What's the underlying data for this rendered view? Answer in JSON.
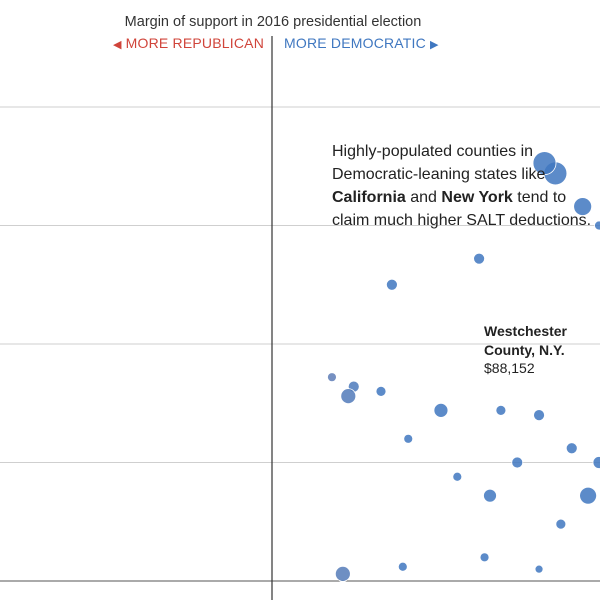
{
  "chart_data": {
    "type": "scatter",
    "title": "Margin of support in 2016 presidential election",
    "direction_left": "MORE REPUBLICAN",
    "direction_right": "MORE DEMOCRATIC",
    "annotation": {
      "line1": "Highly-populated counties in",
      "line2": "Democratic-leaning states like",
      "bold1": "California",
      "and": " and ",
      "bold2": "New York",
      "line3_tail": " tend to",
      "line4": "claim much higher SALT deductions."
    },
    "callout": {
      "name": "Westchester County, N.Y.",
      "value": "$88,152"
    },
    "colors": {
      "republican": "#d0443a",
      "democratic": "#3f77c0",
      "neutral": "#8e86a6",
      "gridline": "#cfcfcf",
      "axis": "#333333"
    },
    "xlim": [
      -0.5,
      0.6
    ],
    "ylim": [
      0,
      100000
    ],
    "grid": true,
    "gridlines_y": [
      25000,
      50000,
      75000,
      100000
    ],
    "highlight": {
      "x": 0.5,
      "y": 88152,
      "size": 22
    },
    "series": [
      {
        "values": [
          {
            "x": 0.22,
            "y": 62500,
            "size": 10
          },
          {
            "x": 0.38,
            "y": 68000,
            "size": 10
          },
          {
            "x": 0.6,
            "y": 75000,
            "size": 8
          },
          {
            "x": 0.52,
            "y": 86000,
            "size": 22
          },
          {
            "x": 0.57,
            "y": 79000,
            "size": 17
          },
          {
            "x": 0.15,
            "y": 41000,
            "size": 10
          },
          {
            "x": 0.11,
            "y": 43000,
            "size": 8
          },
          {
            "x": 0.14,
            "y": 39000,
            "size": 14
          },
          {
            "x": 0.31,
            "y": 36000,
            "size": 13
          },
          {
            "x": 0.2,
            "y": 40000,
            "size": 9
          },
          {
            "x": 0.25,
            "y": 30000,
            "size": 8
          },
          {
            "x": 0.42,
            "y": 36000,
            "size": 9
          },
          {
            "x": 0.49,
            "y": 35000,
            "size": 10
          },
          {
            "x": 0.55,
            "y": 28000,
            "size": 10
          },
          {
            "x": 0.6,
            "y": 25000,
            "size": 11
          },
          {
            "x": 0.34,
            "y": 22000,
            "size": 8
          },
          {
            "x": 0.45,
            "y": 25000,
            "size": 10
          },
          {
            "x": 0.4,
            "y": 18000,
            "size": 12
          },
          {
            "x": 0.58,
            "y": 18000,
            "size": 16
          },
          {
            "x": 0.53,
            "y": 12000,
            "size": 9
          },
          {
            "x": 0.39,
            "y": 5000,
            "size": 8
          },
          {
            "x": 0.49,
            "y": 2500,
            "size": 7
          },
          {
            "x": 0.13,
            "y": 1500,
            "size": 14
          },
          {
            "x": 0.24,
            "y": 3000,
            "size": 8
          }
        ]
      }
    ]
  }
}
